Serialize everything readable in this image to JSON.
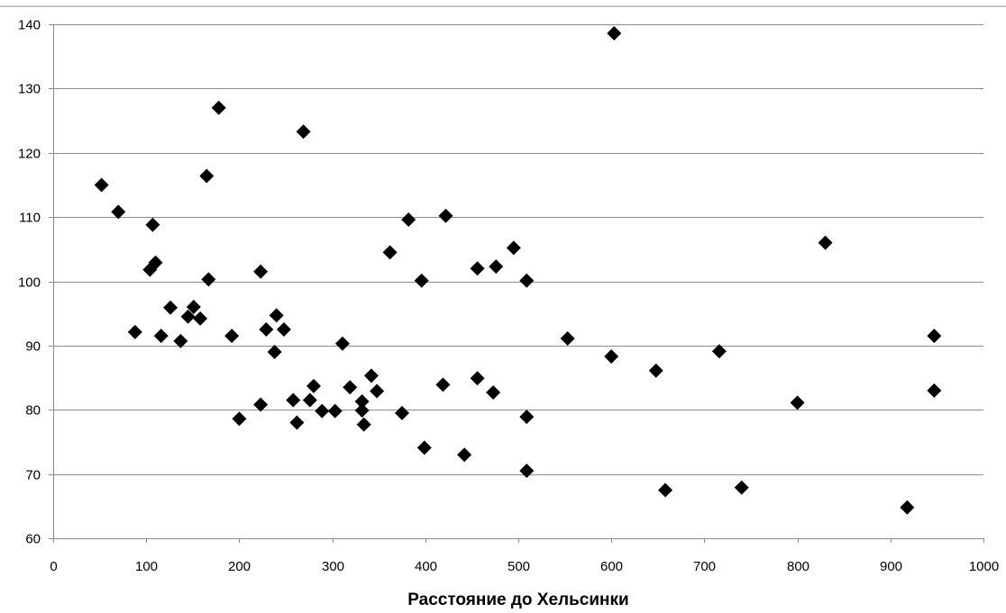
{
  "chart_data": {
    "type": "scatter",
    "title": "",
    "xlabel": "Расстояние до Хельсинки",
    "ylabel": "",
    "xlim": [
      0,
      1000
    ],
    "ylim": [
      60,
      140
    ],
    "xticks": [
      0,
      100,
      200,
      300,
      400,
      500,
      600,
      700,
      800,
      900,
      1000
    ],
    "yticks": [
      60,
      70,
      80,
      90,
      100,
      110,
      120,
      130,
      140
    ],
    "grid": "horizontal",
    "legend": "none",
    "marker": "diamond",
    "marker_color": "#000000",
    "points": [
      [
        52,
        115
      ],
      [
        70,
        110.8
      ],
      [
        88,
        92.1
      ],
      [
        104,
        101.8
      ],
      [
        107,
        108.8
      ],
      [
        110,
        102.9
      ],
      [
        116,
        91.5
      ],
      [
        126,
        95.9
      ],
      [
        137,
        90.7
      ],
      [
        145,
        94.5
      ],
      [
        151,
        96
      ],
      [
        158,
        94.2
      ],
      [
        165,
        116.4
      ],
      [
        167,
        100.3
      ],
      [
        178,
        127
      ],
      [
        192,
        91.5
      ],
      [
        200,
        78.6
      ],
      [
        223,
        80.8
      ],
      [
        223,
        101.5
      ],
      [
        229,
        92.5
      ],
      [
        238,
        89
      ],
      [
        240,
        94.7
      ],
      [
        248,
        92.5
      ],
      [
        258,
        81.5
      ],
      [
        262,
        78
      ],
      [
        269,
        123.3
      ],
      [
        276,
        81.5
      ],
      [
        280,
        83.7
      ],
      [
        289,
        79.8
      ],
      [
        303,
        79.8
      ],
      [
        311,
        90.3
      ],
      [
        319,
        83.5
      ],
      [
        332,
        81.3
      ],
      [
        332,
        79.9
      ],
      [
        334,
        77.7
      ],
      [
        342,
        85.3
      ],
      [
        348,
        82.9
      ],
      [
        375,
        79.5
      ],
      [
        382,
        109.6
      ],
      [
        362,
        104.5
      ],
      [
        396,
        100.1
      ],
      [
        399,
        74.1
      ],
      [
        419,
        83.9
      ],
      [
        422,
        110.2
      ],
      [
        442,
        73
      ],
      [
        456,
        102
      ],
      [
        456,
        84.9
      ],
      [
        473,
        82.7
      ],
      [
        476,
        102.3
      ],
      [
        495,
        105.2
      ],
      [
        509,
        100.1
      ],
      [
        509,
        78.9
      ],
      [
        509,
        70.5
      ],
      [
        553,
        91.1
      ],
      [
        600,
        88.3
      ],
      [
        603,
        138.6
      ],
      [
        648,
        86.1
      ],
      [
        658,
        67.5
      ],
      [
        716,
        89.1
      ],
      [
        740,
        67.9
      ],
      [
        800,
        81.1
      ],
      [
        830,
        106
      ],
      [
        918,
        64.8
      ],
      [
        947,
        91.5
      ],
      [
        947,
        83
      ]
    ]
  }
}
